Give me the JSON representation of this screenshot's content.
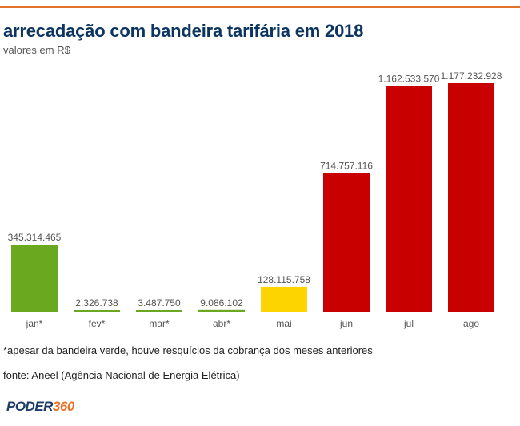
{
  "header": {
    "title": "arrecadação com bandeira tarifária em 2018",
    "subtitle": "valores em R$"
  },
  "footer": {
    "note": "*apesar da bandeira verde, houve resquícios da cobrança dos meses anteriores",
    "source": "fonte: Aneel (Agência Nacional de Energia Elétrica)",
    "logo_word1": "PODER",
    "logo_word2": "360"
  },
  "colors": {
    "accent": "#e5722a",
    "green": "#6aa820",
    "yellow": "#fed400",
    "red": "#c90000",
    "title": "#0c3560"
  },
  "chart_data": {
    "type": "bar",
    "title": "arrecadação com bandeira tarifária em 2018",
    "subtitle": "valores em R$",
    "xlabel": "",
    "ylabel": "",
    "grid": false,
    "legend": "none",
    "ylim": [
      0,
      1177232928
    ],
    "categories": [
      "jan*",
      "fev*",
      "mar*",
      "abr*",
      "mai",
      "jun",
      "jul",
      "ago"
    ],
    "values": [
      345314465,
      2326738,
      3487750,
      9086102,
      128115758,
      714757116,
      1162533570,
      1177232928
    ],
    "value_labels": [
      "345.314.465",
      "2.326.738",
      "3.487.750",
      "9.086.102",
      "128.115.758",
      "714.757.116",
      "1.162.533.570",
      "1.177.232.928"
    ],
    "bar_colors": [
      "#6aa820",
      "#6aa820",
      "#6aa820",
      "#6aa820",
      "#fed400",
      "#c90000",
      "#c90000",
      "#c90000"
    ]
  }
}
